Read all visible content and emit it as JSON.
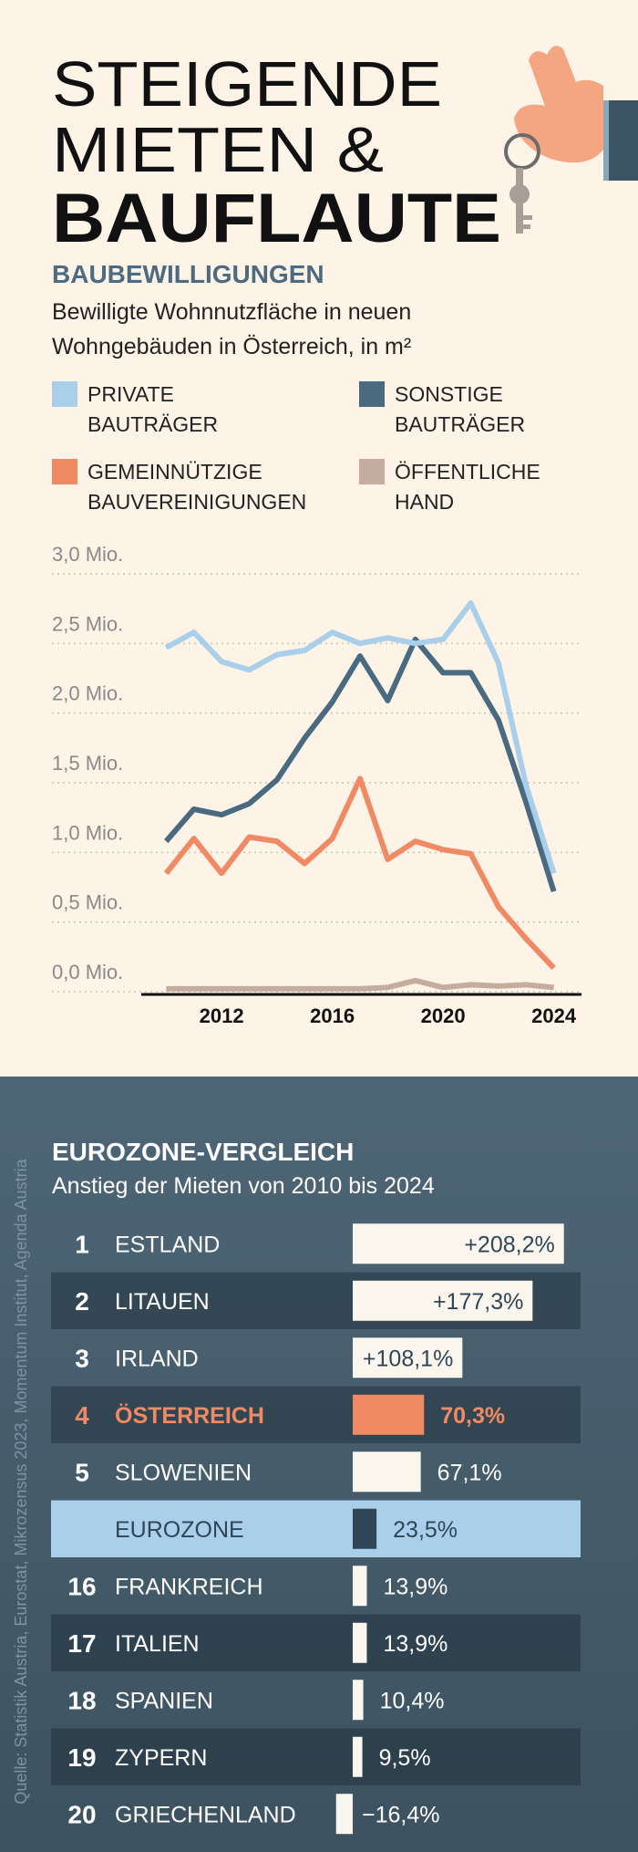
{
  "header": {
    "title": [
      "STEIGENDE",
      "MIETEN &",
      "BAUFLAUTE"
    ]
  },
  "source": "Quelle: Statistik Austria, Eurostat, Mikrozensus 2023, Momentum Institut, Agenda Austria",
  "chart_data": [
    {
      "type": "line",
      "title": "BAUBEWILLIGUNGEN",
      "subtitle": [
        "Bewilligte Wohnnutzfläche in neuen",
        "Wohngebäuden in Österreich, in m²"
      ],
      "x": [
        2010,
        2011,
        2012,
        2013,
        2014,
        2015,
        2016,
        2017,
        2018,
        2019,
        2020,
        2021,
        2022,
        2023,
        2024
      ],
      "series": [
        {
          "name": "PRIVATE BAUTRÄGER",
          "color": "#a9cfea",
          "values": [
            2.47,
            2.58,
            2.37,
            2.31,
            2.42,
            2.45,
            2.58,
            2.5,
            2.54,
            2.5,
            2.53,
            2.79,
            2.36,
            1.48,
            0.85
          ]
        },
        {
          "name": "SONSTIGE BAUTRÄGER",
          "color": "#4a6a80",
          "values": [
            1.08,
            1.31,
            1.27,
            1.35,
            1.52,
            1.82,
            2.08,
            2.41,
            2.09,
            2.53,
            2.29,
            2.29,
            1.95,
            1.36,
            0.72
          ]
        },
        {
          "name": "GEMEINNÜTZIGE BAUVEREINIGUNGEN",
          "color": "#f08a64",
          "values": [
            0.85,
            1.1,
            0.85,
            1.11,
            1.08,
            0.92,
            1.1,
            1.53,
            0.95,
            1.08,
            1.02,
            0.99,
            0.61,
            0.38,
            0.17
          ]
        },
        {
          "name": "ÖFFENTLICHE HAND",
          "color": "#c4ad9e",
          "values": [
            0.02,
            0.02,
            0.02,
            0.02,
            0.02,
            0.02,
            0.02,
            0.02,
            0.03,
            0.08,
            0.03,
            0.05,
            0.04,
            0.05,
            0.03
          ]
        }
      ],
      "xlim": [
        2009.1,
        2025
      ],
      "xticks": [
        2012,
        2016,
        2020,
        2024
      ],
      "ylim": [
        0,
        3.0
      ],
      "yticks": [
        {
          "value": 0,
          "label": "0,0 Mio."
        },
        {
          "value": 0.5,
          "label": "0,5 Mio."
        },
        {
          "value": 1.0,
          "label": "1,0 Mio."
        },
        {
          "value": 1.5,
          "label": "1,5 Mio."
        },
        {
          "value": 2.0,
          "label": "2,0 Mio."
        },
        {
          "value": 2.5,
          "label": "2,5 Mio."
        },
        {
          "value": 3.0,
          "label": "3,0 Mio."
        }
      ],
      "grid": true
    },
    {
      "type": "bar",
      "orientation": "horizontal",
      "title": "EUROZONE-VERGLEICH",
      "subtitle": "Anstieg der Mieten von 2010 bis 2024",
      "ranks": [
        "1",
        "2",
        "3",
        "4",
        "5",
        null,
        "16",
        "17",
        "18",
        "19",
        "20"
      ],
      "categories": [
        "ESTLAND",
        "LITAUEN",
        "IRLAND",
        "ÖSTERREICH",
        "SLOWENIEN",
        "EUROZONE",
        "FRANKREICH",
        "ITALIEN",
        "SPANIEN",
        "ZYPERN",
        "GRIECHENLAND"
      ],
      "values": [
        208.2,
        177.3,
        108.1,
        70.3,
        67.1,
        23.5,
        13.9,
        13.9,
        10.4,
        9.5,
        -16.4
      ],
      "value_labels": [
        "+208,2%",
        "+177,3%",
        "+108,1%",
        "70,3%",
        "67,1%",
        "23,5%",
        "13,9%",
        "13,9%",
        "10,4%",
        "9,5%",
        "−16,4%"
      ],
      "bar_colors": [
        "#faf6ee",
        "#faf6ee",
        "#faf6ee",
        "#f08a64",
        "#faf6ee",
        "#2f4656",
        "#faf6ee",
        "#faf6ee",
        "#faf6ee",
        "#faf6ee",
        "#faf6ee"
      ],
      "label_colors": [
        "#ffffff",
        "#ffffff",
        "#ffffff",
        "#f08a64",
        "#ffffff",
        "#2f4656",
        "#ffffff",
        "#ffffff",
        "#ffffff",
        "#ffffff",
        "#ffffff"
      ],
      "row_colors": [
        "rgba(0,0,0,0)",
        "rgba(20,35,45,0.4)",
        "rgba(0,0,0,0)",
        "rgba(20,35,45,0.4)",
        "rgba(0,0,0,0)",
        "#a9cfea",
        "rgba(0,0,0,0)",
        "rgba(20,35,45,0.4)",
        "rgba(0,0,0,0)",
        "rgba(20,35,45,0.4)",
        "rgba(0,0,0,0)"
      ]
    }
  ]
}
